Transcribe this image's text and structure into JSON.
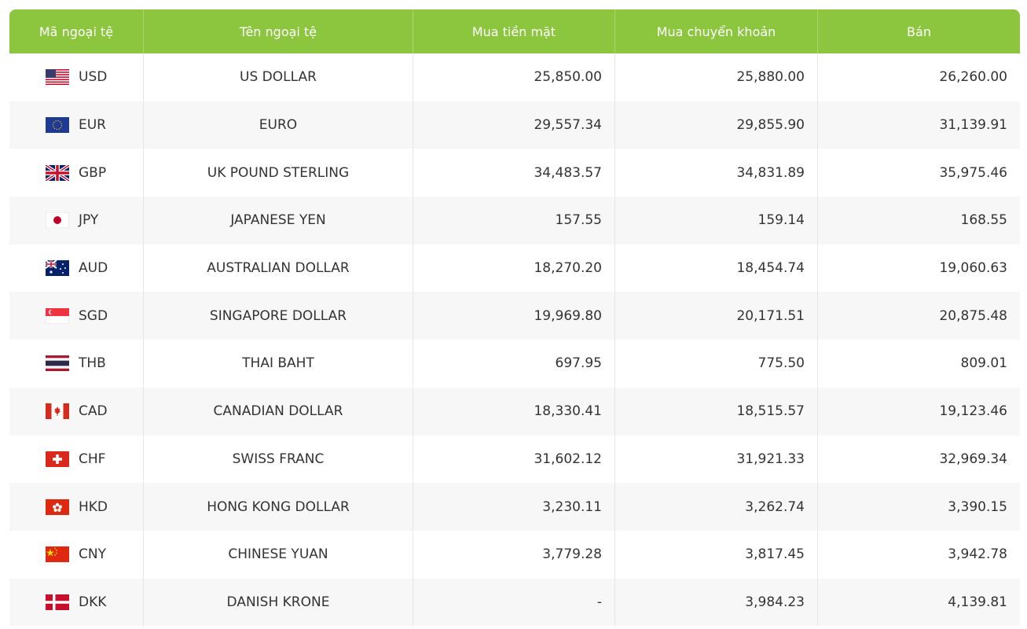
{
  "table": {
    "headers": [
      "Mã ngoại tệ",
      "Tên ngoại tệ",
      "Mua tiền mặt",
      "Mua chuyển khoản",
      "Bán"
    ],
    "rows": [
      [
        "USD",
        "US DOLLAR",
        "25,850.00",
        "25,880.00",
        "26,260.00"
      ],
      [
        "EUR",
        "EURO",
        "29,557.34",
        "29,855.90",
        "31,139.91"
      ],
      [
        "GBP",
        "UK POUND STERLING",
        "34,483.57",
        "34,831.89",
        "35,975.46"
      ],
      [
        "JPY",
        "JAPANESE YEN",
        "157.55",
        "159.14",
        "168.55"
      ],
      [
        "AUD",
        "AUSTRALIAN DOLLAR",
        "18,270.20",
        "18,454.74",
        "19,060.63"
      ],
      [
        "SGD",
        "SINGAPORE DOLLAR",
        "19,969.80",
        "20,171.51",
        "20,875.48"
      ],
      [
        "THB",
        "THAI BAHT",
        "697.95",
        "775.50",
        "809.01"
      ],
      [
        "CAD",
        "CANADIAN DOLLAR",
        "18,330.41",
        "18,515.57",
        "19,123.46"
      ],
      [
        "CHF",
        "SWISS FRANC",
        "31,602.12",
        "31,921.33",
        "32,969.34"
      ],
      [
        "HKD",
        "HONG KONG DOLLAR",
        "3,230.11",
        "3,262.74",
        "3,390.15"
      ],
      [
        "CNY",
        "CHINESE YUAN",
        "3,779.28",
        "3,817.45",
        "3,942.78"
      ],
      [
        "DKK",
        "DANISH KRONE",
        "-",
        "3,984.23",
        "4,139.81"
      ]
    ]
  }
}
